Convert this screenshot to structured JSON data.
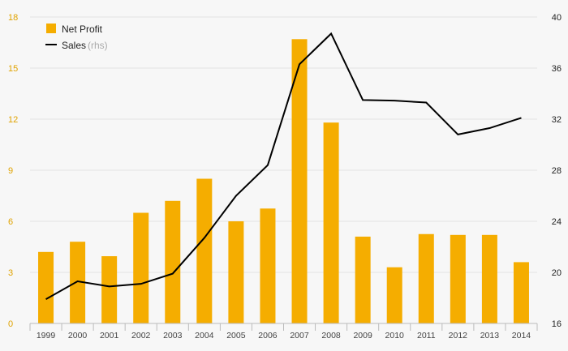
{
  "chart_data": {
    "type": "bar",
    "categories": [
      "1999",
      "2000",
      "2001",
      "2002",
      "2003",
      "2004",
      "2005",
      "2006",
      "2007",
      "2008",
      "2009",
      "2010",
      "2011",
      "2012",
      "2013",
      "2014"
    ],
    "series": [
      {
        "name": "Net Profit",
        "type": "bar",
        "axis": "left",
        "color": "#f5ad00",
        "values": [
          4.2,
          4.8,
          3.95,
          6.5,
          7.2,
          8.5,
          6.0,
          6.75,
          16.7,
          11.8,
          5.1,
          3.3,
          5.25,
          5.2,
          5.2,
          3.6
        ]
      },
      {
        "name": "Sales",
        "type": "line",
        "axis": "right",
        "color": "#000000",
        "values": [
          17.9,
          19.3,
          18.9,
          19.1,
          19.9,
          22.7,
          26.0,
          28.4,
          36.3,
          38.7,
          33.5,
          33.45,
          33.3,
          30.8,
          31.3,
          32.1
        ]
      }
    ],
    "ylim_left": [
      0,
      18
    ],
    "yticks_left": [
      "0",
      "3",
      "6",
      "9",
      "12",
      "15",
      "18"
    ],
    "ylim_right": [
      16,
      40
    ],
    "yticks_right": [
      "16",
      "20",
      "24",
      "28",
      "32",
      "36",
      "40"
    ],
    "legend": {
      "position": "top-left",
      "items": [
        {
          "label": "Net Profit",
          "note": ""
        },
        {
          "label": "Sales",
          "note": "(rhs)"
        }
      ]
    },
    "grid": true
  }
}
